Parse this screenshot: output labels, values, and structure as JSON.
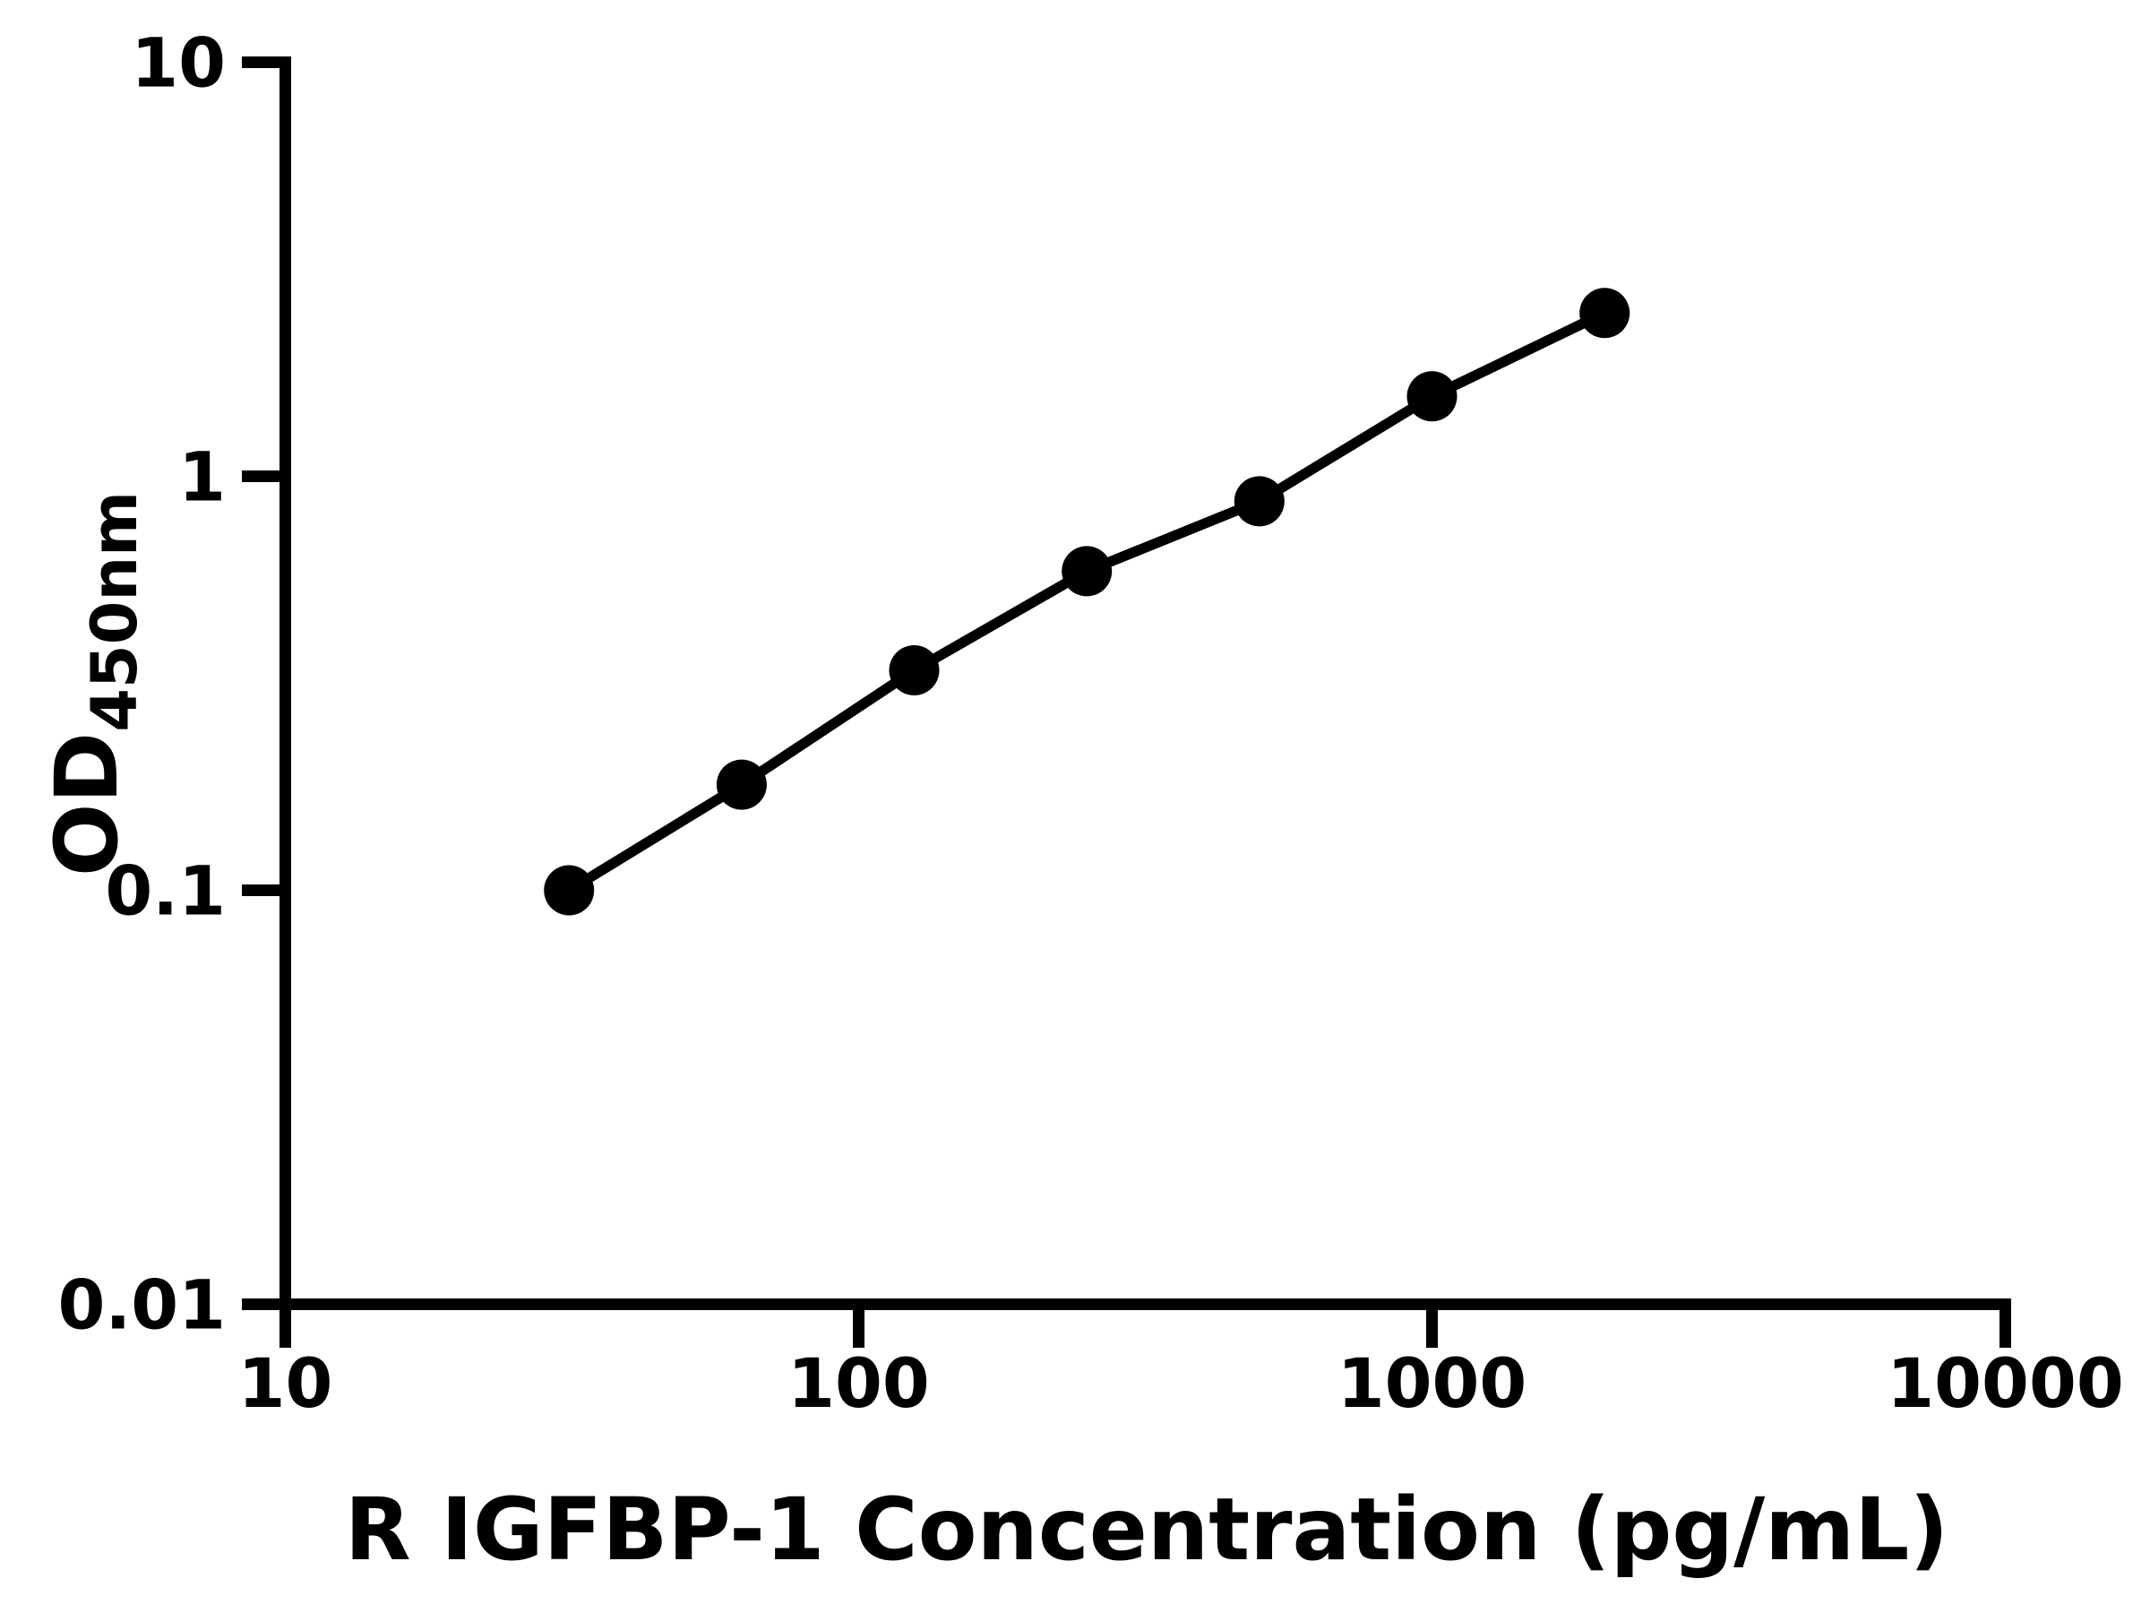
{
  "page": {
    "background_color": "#ffffff",
    "ink_color": "#000000"
  },
  "chart_data": {
    "type": "line",
    "title": "",
    "xlabel": "R IGFBP-1 Concentration (pg/mL)",
    "ylabel": "OD450nm",
    "ylabel_main": "OD",
    "ylabel_subscript": "450nm",
    "x_scale": "log10",
    "y_scale": "log10",
    "xlim": [
      10,
      10000
    ],
    "ylim": [
      0.01,
      10
    ],
    "x_ticks": [
      "10",
      "100",
      "1000",
      "10000"
    ],
    "y_ticks": [
      "10",
      "1",
      "0.1",
      "0.01"
    ],
    "x": [
      31.25,
      62.5,
      125,
      250,
      500,
      1000,
      2000
    ],
    "y": [
      0.1,
      0.18,
      0.34,
      0.59,
      0.87,
      1.56,
      2.48
    ],
    "marker": "filled-circle",
    "marker_color": "#000000",
    "line_color": "#000000",
    "grid": false,
    "legend": "none"
  }
}
